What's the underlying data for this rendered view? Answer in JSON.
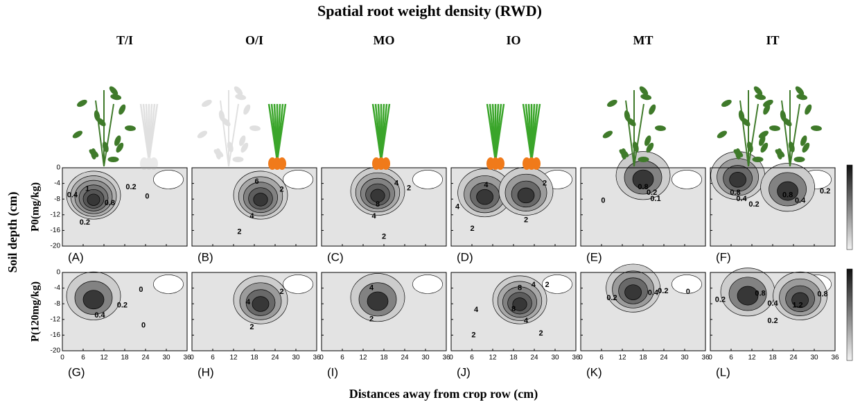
{
  "title": "Spatial root weight density (RWD)",
  "columns": [
    "T/I",
    "O/I",
    "MO",
    "IO",
    "MT",
    "IT"
  ],
  "rows": [
    "P0(mg/kg)",
    "P(120mg/kg)"
  ],
  "y_axis_label": "Soil depth (cm)",
  "x_axis_label": "Distances away from crop row (cm)",
  "xticks": [
    0,
    6,
    12,
    18,
    24,
    30,
    36
  ],
  "yticks": [
    0,
    -4,
    -8,
    -12,
    -16,
    -20
  ],
  "panel_labels": [
    "(A)",
    "(B)",
    "(C)",
    "(D)",
    "(E)",
    "(F)",
    "(G)",
    "(H)",
    "(I)",
    "(J)",
    "(K)",
    "(L)"
  ],
  "contour_labels": [
    [
      "1",
      "0.4",
      "0.2",
      "0.8",
      "0",
      "0.2"
    ],
    [
      "6",
      "2",
      "4",
      "2"
    ],
    [
      "4",
      "2",
      "8",
      "4",
      "2"
    ],
    [
      "4",
      "2",
      "4",
      "2",
      "2"
    ],
    [
      "0",
      "0.8",
      "0.2",
      "0.1"
    ],
    [
      "0.8",
      "0.4",
      "0.2",
      "0.8",
      "0.4",
      "0.2"
    ],
    [
      "0.2",
      "0.4",
      "0",
      "0"
    ],
    [
      "2",
      "4",
      "2"
    ],
    [
      "4",
      "2"
    ],
    [
      "8",
      "4",
      "2",
      "4",
      "8",
      "4",
      "2",
      "2"
    ],
    [
      "0.2",
      "0.4",
      "0.2",
      "0"
    ],
    [
      "0.2",
      "0.8",
      "0.4",
      "1.2",
      "0.8",
      "0.2"
    ]
  ]
}
